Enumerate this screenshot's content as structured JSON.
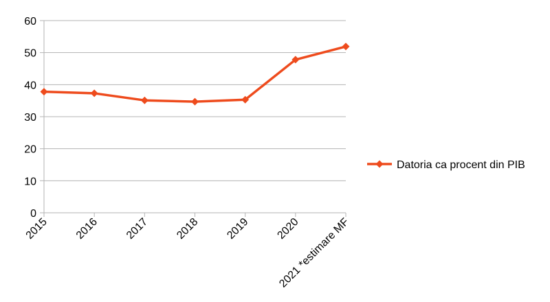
{
  "chart_data": {
    "type": "line",
    "title": "",
    "xlabel": "",
    "ylabel": "",
    "categories": [
      "2015",
      "2016",
      "2017",
      "2018",
      "2019",
      "2020",
      "2021 *estimare MF"
    ],
    "series": [
      {
        "name": "Datoria ca procent din PIB",
        "values": [
          37.8,
          37.3,
          35.1,
          34.7,
          35.3,
          47.8,
          51.9
        ]
      }
    ],
    "ylim": [
      0,
      60
    ],
    "yticks": [
      0,
      10,
      20,
      30,
      40,
      50,
      60
    ],
    "grid": "horizontal",
    "legend_position": "right",
    "series_color": "#ee4b1d",
    "grid_color": "#b3b3b3"
  }
}
